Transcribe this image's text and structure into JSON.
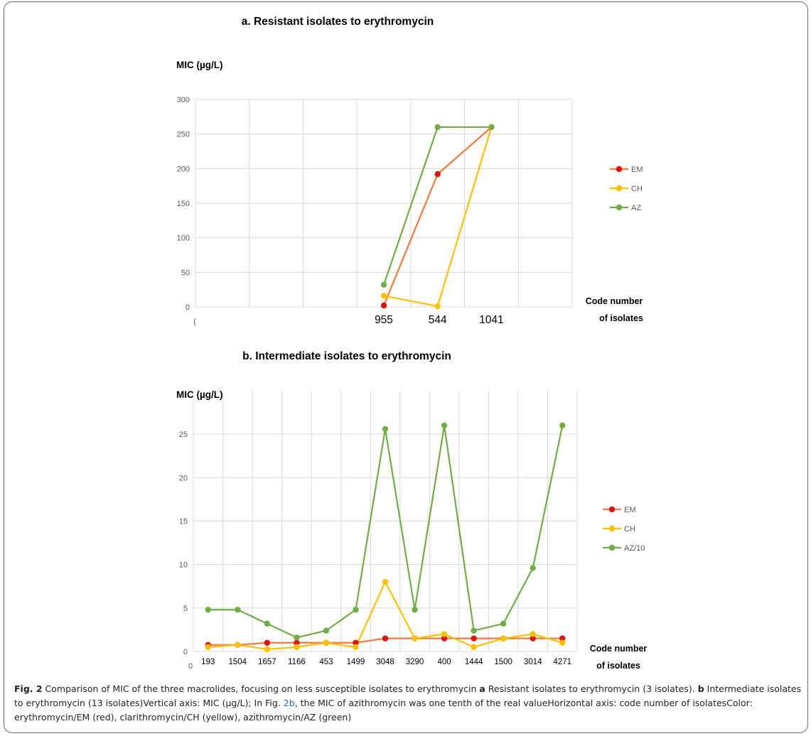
{
  "chart_data": [
    {
      "type": "line",
      "title": "a. Resistant isolates to erythromycin",
      "ylabel": "MIC (µg/L)",
      "xlabel_line1": "Code number",
      "xlabel_line2": "of isolates",
      "x_axis_origin_label": "(",
      "categories": [
        "955",
        "544",
        "1041"
      ],
      "yticks": [
        "0",
        "50",
        "100",
        "150",
        "200",
        "250",
        "300"
      ],
      "ylim": [
        0,
        300
      ],
      "grid": true,
      "legend_position": "right",
      "series": [
        {
          "name": "EM",
          "color": "#ef7a3a",
          "marker": "#e0120f",
          "values": [
            2,
            192,
            260
          ]
        },
        {
          "name": "CH",
          "color": "#ffc000",
          "marker": "#ffc000",
          "values": [
            16,
            1,
            260
          ]
        },
        {
          "name": "AZ",
          "color": "#70ad47",
          "marker": "#70ad47",
          "values": [
            32,
            260,
            260
          ]
        }
      ]
    },
    {
      "type": "line",
      "title": "b. Intermediate isolates to erythromycin",
      "ylabel": "MIC (µg/L)",
      "xlabel_line1": "Code number",
      "xlabel_line2": "of isolates",
      "x_axis_origin_label": "0",
      "categories": [
        "193",
        "1504",
        "1657",
        "1166",
        "453",
        "1499",
        "3048",
        "3290",
        "400",
        "1444",
        "1500",
        "3014",
        "4271"
      ],
      "yticks": [
        "0",
        "5",
        "10",
        "15",
        "20",
        "25"
      ],
      "ylim": [
        0,
        30
      ],
      "grid": true,
      "legend_position": "right",
      "series": [
        {
          "name": "EM",
          "color": "#ef7a3a",
          "marker": "#e0120f",
          "values": [
            0.75,
            0.75,
            1,
            1,
            1,
            1,
            1.5,
            1.5,
            1.5,
            1.5,
            1.5,
            1.5,
            1.5
          ]
        },
        {
          "name": "CH",
          "color": "#ffc000",
          "marker": "#ffc000",
          "values": [
            0.5,
            0.75,
            0.25,
            0.5,
            1,
            0.5,
            8,
            1.5,
            2,
            0.5,
            1.5,
            2,
            1
          ]
        },
        {
          "name": "AZ/10",
          "color": "#70ad47",
          "marker": "#70ad47",
          "values": [
            4.8,
            4.8,
            3.2,
            1.6,
            2.4,
            4.8,
            25.6,
            4.8,
            26,
            2.4,
            3.2,
            9.6,
            26
          ]
        }
      ]
    }
  ],
  "caption": {
    "label": "Fig. 2",
    "text_1": " Comparison of MIC of the three macrolides, focusing on less susceptible isolates to erythromycin ",
    "a": "a",
    "text_2": " Resistant isolates to erythromycin (3 isolates). ",
    "b": "b",
    "text_3": " Intermediate isolates to erythromycin (13 isolates)Vertical axis: MIC (µg/L); In Fig. ",
    "link": "2b",
    "text_4": ", the MIC of azithromycin was one tenth of the real valueHorizontal axis: code number of isolatesColor: erythromycin/EM (red), clarithromycin/CH (yellow), azithromycin/AZ (green)"
  }
}
